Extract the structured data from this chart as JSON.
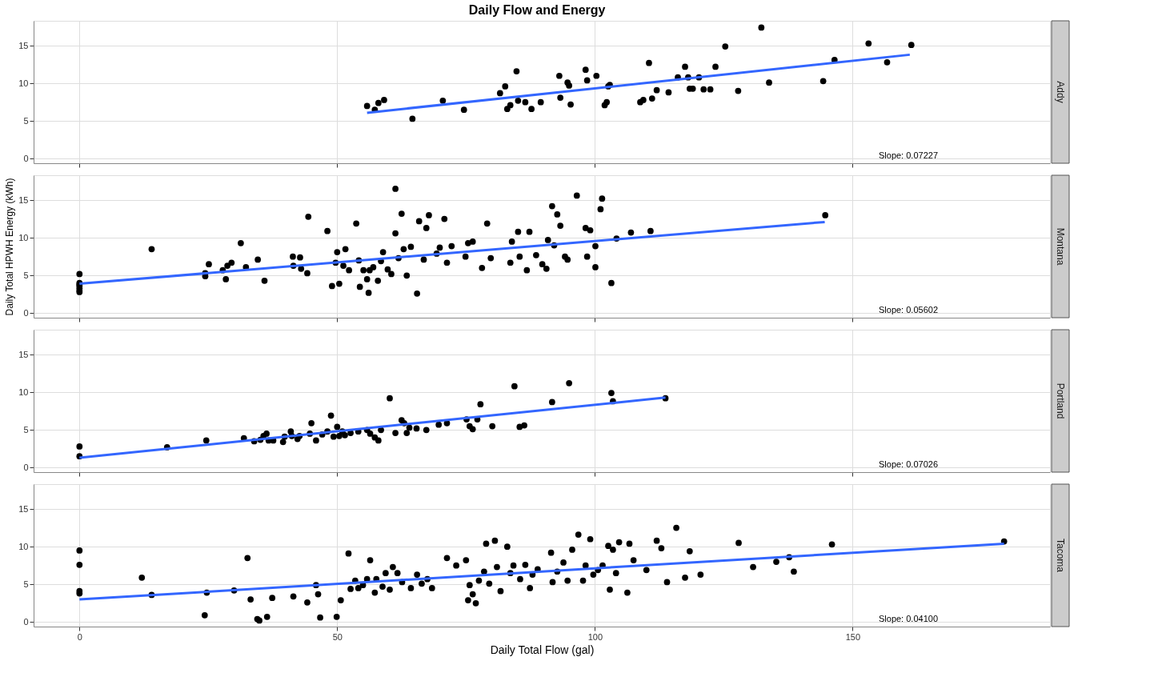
{
  "chart_data": [
    {
      "type": "scatter",
      "title": "Daily Flow and Energy",
      "subtitle": "Addy",
      "annotations": [
        "Slope: 0.07227"
      ],
      "xlim": [
        -8.9,
        188.3
      ],
      "ylim": [
        -0.6,
        18.3
      ],
      "xticks": [
        0,
        50,
        100,
        150
      ],
      "yticks": [
        0,
        5,
        10,
        15
      ],
      "tick_labels": "y",
      "grid": true,
      "line_style": "solid",
      "series": [
        {
          "marker": "circle",
          "color": "#000000",
          "x": [
            55.8,
            57.3,
            58.0,
            59.1,
            64.6,
            70.5,
            74.6,
            81.6,
            82.6,
            83.0,
            83.6,
            84.8,
            85.1,
            86.5,
            87.7,
            89.5,
            93.1,
            93.3,
            94.7,
            95.0,
            95.3,
            98.2,
            98.5,
            100.3,
            101.9,
            102.3,
            102.6,
            102.9,
            108.8,
            109.4,
            110.5,
            111.1,
            112.0,
            114.3,
            116.1,
            117.5,
            118.1,
            118.4,
            119.0,
            120.2,
            121.1,
            122.4,
            123.4,
            125.3,
            127.8,
            132.3,
            133.8,
            144.3,
            146.5,
            153.1,
            156.7,
            161.4
          ],
          "values": [
            7.0,
            6.5,
            7.4,
            7.8,
            5.3,
            7.7,
            6.5,
            8.7,
            9.6,
            6.6,
            7.1,
            11.6,
            7.7,
            7.5,
            6.6,
            7.5,
            11.0,
            8.1,
            10.1,
            9.7,
            7.2,
            11.8,
            10.4,
            11.0,
            7.1,
            7.5,
            9.6,
            9.8,
            7.5,
            7.8,
            12.7,
            8.0,
            9.1,
            8.8,
            10.8,
            12.2,
            10.8,
            9.3,
            9.3,
            10.8,
            9.2,
            9.2,
            12.2,
            14.9,
            9.0,
            17.4,
            10.1,
            10.3,
            13.1,
            15.3,
            12.8,
            15.1
          ]
        },
        {
          "type": "line",
          "color": "#3366ff",
          "x": [
            55.8,
            161.1
          ],
          "values": [
            6.1,
            13.8
          ]
        }
      ]
    },
    {
      "type": "scatter",
      "ylabel": "Daily Total HPWH Energy (kWh)",
      "subtitle": "Montana",
      "annotations": [
        "Slope: 0.05602"
      ],
      "xlim": [
        -8.9,
        188.3
      ],
      "ylim": [
        -0.6,
        18.3
      ],
      "xticks": [
        0,
        50,
        100,
        150
      ],
      "yticks": [
        0,
        5,
        10,
        15
      ],
      "tick_labels": "y",
      "grid": true,
      "line_style": "solid",
      "series": [
        {
          "marker": "circle",
          "color": "#000000",
          "x": [
            0,
            0,
            0,
            0,
            0,
            0,
            0,
            14.0,
            24.4,
            24.4,
            25.1,
            27.8,
            28.4,
            28.7,
            29.5,
            31.3,
            32.3,
            34.6,
            35.9,
            41.4,
            41.5,
            42.8,
            43.0,
            44.2,
            44.4,
            48.1,
            49.0,
            49.7,
            50.0,
            50.4,
            51.2,
            51.6,
            52.3,
            53.7,
            54.2,
            54.4,
            55.1,
            55.8,
            56.1,
            56.3,
            57.0,
            57.9,
            58.5,
            58.9,
            59.8,
            60.5,
            61.3,
            61.3,
            61.9,
            62.5,
            62.9,
            63.5,
            64.3,
            65.5,
            65.9,
            66.8,
            67.3,
            67.8,
            69.3,
            69.9,
            70.8,
            71.3,
            72.2,
            74.9,
            75.4,
            76.3,
            78.1,
            79.1,
            79.8,
            83.6,
            83.9,
            85.1,
            85.4,
            86.8,
            87.3,
            88.6,
            89.8,
            90.6,
            90.9,
            91.7,
            92.1,
            92.7,
            93.3,
            94.2,
            94.7,
            96.5,
            98.2,
            98.5,
            99.1,
            100.1,
            100.1,
            101.1,
            101.4,
            103.2,
            104.2,
            107.0,
            110.8,
            144.7
          ],
          "values": [
            5.2,
            4.0,
            3.8,
            3.6,
            3.3,
            3.0,
            2.8,
            8.5,
            4.9,
            5.3,
            6.5,
            5.7,
            4.5,
            6.3,
            6.7,
            9.3,
            6.1,
            7.1,
            4.3,
            7.5,
            6.3,
            7.4,
            5.9,
            5.3,
            12.8,
            10.9,
            3.6,
            6.7,
            8.1,
            3.9,
            6.3,
            8.5,
            5.7,
            11.9,
            7.0,
            3.5,
            5.7,
            4.5,
            2.7,
            5.7,
            6.1,
            4.3,
            6.9,
            8.1,
            5.8,
            5.2,
            16.5,
            10.6,
            7.3,
            13.2,
            8.5,
            5.0,
            8.8,
            2.6,
            12.2,
            7.1,
            11.3,
            13.0,
            7.9,
            8.7,
            12.5,
            6.7,
            8.9,
            7.5,
            9.3,
            9.5,
            6.0,
            11.9,
            7.3,
            6.7,
            9.5,
            10.8,
            7.5,
            5.7,
            10.8,
            7.7,
            6.5,
            5.9,
            9.7,
            14.2,
            9.0,
            13.1,
            11.6,
            7.5,
            7.1,
            15.6,
            11.3,
            7.5,
            11.0,
            8.9,
            6.1,
            13.8,
            15.2,
            4.0,
            9.9,
            10.7,
            10.9,
            13.0
          ]
        },
        {
          "type": "line",
          "color": "#3366ff",
          "x": [
            0,
            144.6
          ],
          "values": [
            3.9,
            12.1
          ]
        }
      ]
    },
    {
      "type": "scatter",
      "subtitle": "Portland",
      "annotations": [
        "Slope: 0.07026"
      ],
      "xlim": [
        -8.9,
        188.3
      ],
      "ylim": [
        -0.6,
        18.3
      ],
      "xticks": [
        0,
        50,
        100,
        150
      ],
      "yticks": [
        0,
        5,
        10,
        15
      ],
      "tick_labels": "y",
      "grid": true,
      "line_style": "solid",
      "series": [
        {
          "marker": "circle",
          "color": "#000000",
          "x": [
            0,
            0,
            17.0,
            24.6,
            31.9,
            33.9,
            35.1,
            35.7,
            36.3,
            36.7,
            37.6,
            39.5,
            39.8,
            41.0,
            41.2,
            42.3,
            42.7,
            44.7,
            45.0,
            45.9,
            47.1,
            48.1,
            48.8,
            49.3,
            50.0,
            50.4,
            51.0,
            51.5,
            52.6,
            54.1,
            55.8,
            56.4,
            57.3,
            58.0,
            58.5,
            60.2,
            61.3,
            62.5,
            63.0,
            63.5,
            64.0,
            65.4,
            67.3,
            69.7,
            71.3,
            75.1,
            75.7,
            76.3,
            77.2,
            77.8,
            80.1,
            84.4,
            85.4,
            86.3,
            91.7,
            95.0,
            103.2,
            103.5,
            113.7
          ],
          "values": [
            2.8,
            1.5,
            2.7,
            3.6,
            3.9,
            3.5,
            3.7,
            4.2,
            4.5,
            3.6,
            3.6,
            3.4,
            4.1,
            4.8,
            4.2,
            3.8,
            4.2,
            4.5,
            5.9,
            3.6,
            4.4,
            4.8,
            6.9,
            4.1,
            5.4,
            4.2,
            4.8,
            4.3,
            4.6,
            4.8,
            5.0,
            4.5,
            4.0,
            3.6,
            5.0,
            9.2,
            4.6,
            6.3,
            5.9,
            4.6,
            5.3,
            5.2,
            5.0,
            5.7,
            5.9,
            6.4,
            5.5,
            5.1,
            6.4,
            8.4,
            5.5,
            10.8,
            5.4,
            5.6,
            8.7,
            11.2,
            9.9,
            8.8,
            9.2
          ]
        },
        {
          "type": "line",
          "color": "#3366ff",
          "x": [
            0,
            113.7
          ],
          "values": [
            1.3,
            9.3
          ]
        }
      ]
    },
    {
      "type": "scatter",
      "subtitle": "Tacoma",
      "xlabel": "Daily Total Flow (gal)",
      "annotations": [
        "Slope: 0.04100"
      ],
      "xlim": [
        -8.9,
        188.3
      ],
      "ylim": [
        -0.6,
        18.3
      ],
      "xticks": [
        0,
        50,
        100,
        150
      ],
      "yticks": [
        0,
        5,
        10,
        15
      ],
      "grid": true,
      "line_style": "solid",
      "series": [
        {
          "marker": "circle",
          "color": "#000000",
          "x": [
            0,
            0,
            0,
            0,
            12.1,
            14.0,
            24.3,
            24.7,
            30.0,
            32.6,
            33.2,
            34.5,
            34.9,
            36.4,
            37.4,
            41.5,
            44.2,
            45.9,
            46.3,
            46.7,
            49.9,
            50.7,
            52.2,
            52.6,
            53.5,
            54.1,
            55.0,
            55.8,
            56.4,
            57.3,
            57.6,
            58.8,
            59.4,
            60.2,
            60.8,
            61.7,
            62.6,
            64.3,
            65.5,
            66.4,
            67.5,
            68.4,
            71.3,
            73.1,
            75.0,
            75.4,
            75.7,
            76.3,
            76.9,
            77.5,
            78.5,
            78.9,
            79.5,
            80.6,
            81.0,
            81.7,
            83.0,
            83.6,
            84.2,
            85.5,
            86.5,
            87.4,
            87.9,
            88.9,
            91.5,
            91.8,
            92.7,
            93.9,
            94.7,
            95.6,
            96.8,
            97.7,
            98.2,
            99.1,
            99.7,
            100.6,
            101.5,
            102.6,
            102.9,
            103.5,
            104.1,
            104.7,
            106.3,
            106.7,
            107.5,
            110.0,
            112.0,
            112.9,
            114.0,
            115.8,
            117.5,
            118.4,
            120.5,
            127.9,
            130.7,
            135.2,
            137.7,
            138.6,
            146.0,
            179.4
          ],
          "values": [
            9.5,
            7.6,
            4.1,
            3.8,
            5.9,
            3.6,
            0.9,
            3.9,
            4.2,
            8.5,
            3.0,
            0.4,
            0.2,
            0.7,
            3.2,
            3.4,
            2.6,
            4.9,
            3.7,
            0.6,
            0.7,
            2.9,
            9.1,
            4.4,
            5.5,
            4.5,
            4.9,
            5.7,
            8.2,
            3.9,
            5.7,
            4.7,
            6.5,
            4.3,
            7.3,
            6.5,
            5.3,
            4.5,
            6.3,
            5.1,
            5.7,
            4.5,
            8.5,
            7.5,
            8.2,
            2.9,
            4.9,
            3.7,
            2.5,
            5.5,
            6.7,
            10.4,
            5.1,
            10.8,
            7.3,
            4.1,
            10.0,
            6.5,
            7.5,
            5.7,
            7.6,
            4.5,
            6.3,
            7.0,
            9.2,
            5.3,
            6.7,
            7.9,
            5.5,
            9.6,
            11.6,
            5.5,
            7.5,
            11.0,
            6.3,
            6.9,
            7.5,
            10.1,
            4.3,
            9.6,
            6.5,
            10.6,
            3.9,
            10.4,
            8.2,
            6.9,
            10.8,
            9.8,
            5.3,
            12.5,
            5.9,
            9.4,
            6.3,
            10.5,
            7.3,
            8.0,
            8.6,
            6.7,
            10.3,
            10.7
          ]
        },
        {
          "type": "line",
          "color": "#3366ff",
          "x": [
            0,
            179.4
          ],
          "values": [
            3.0,
            10.4
          ]
        }
      ]
    }
  ]
}
